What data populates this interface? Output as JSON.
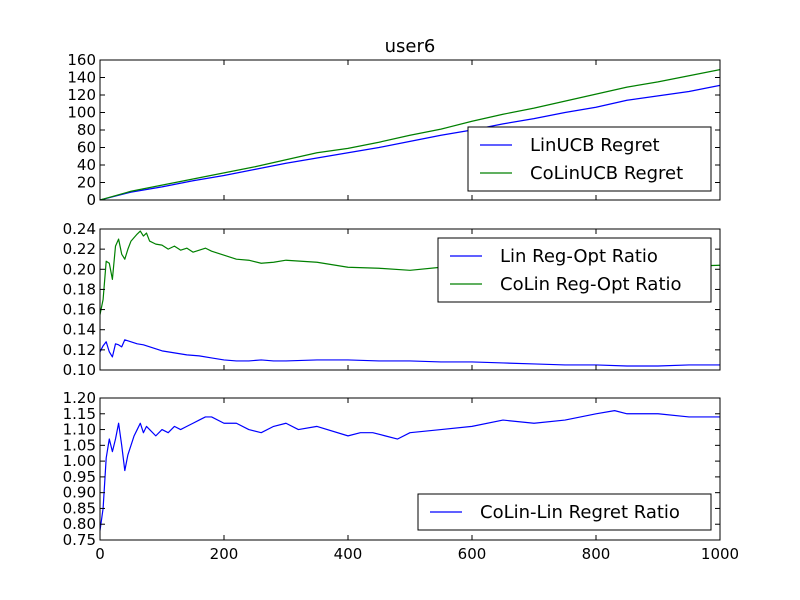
{
  "figure": {
    "title": "user6"
  },
  "colors": {
    "blue": "#0000ff",
    "green": "#008000"
  },
  "chart_data": [
    {
      "type": "line",
      "title": "user6",
      "xlim": [
        0,
        1000
      ],
      "ylim": [
        0,
        160
      ],
      "yticks": [
        "0",
        "20",
        "40",
        "60",
        "80",
        "100",
        "120",
        "140",
        "160"
      ],
      "yticks_values": [
        0,
        20,
        40,
        60,
        80,
        100,
        120,
        140,
        160
      ],
      "xticks_visible": false,
      "legend_placement": "lower-right",
      "series": [
        {
          "name": "LinUCB Regret",
          "color": "#0000ff",
          "x": [
            0,
            50,
            100,
            150,
            200,
            250,
            300,
            350,
            400,
            450,
            500,
            550,
            600,
            650,
            700,
            750,
            800,
            850,
            900,
            950,
            1000
          ],
          "y": [
            0,
            9,
            15,
            22,
            28,
            35,
            42,
            48,
            54,
            60,
            67,
            74,
            80,
            87,
            93,
            100,
            106,
            114,
            119,
            124,
            131
          ]
        },
        {
          "name": "CoLinUCB Regret",
          "color": "#008000",
          "x": [
            0,
            50,
            100,
            150,
            200,
            250,
            300,
            350,
            400,
            450,
            500,
            550,
            600,
            650,
            700,
            750,
            800,
            850,
            900,
            950,
            1000
          ],
          "y": [
            0,
            10,
            17,
            24,
            31,
            38,
            46,
            54,
            59,
            66,
            74,
            81,
            90,
            98,
            105,
            113,
            121,
            129,
            135,
            142,
            149
          ]
        }
      ]
    },
    {
      "type": "line",
      "xlim": [
        0,
        1000
      ],
      "ylim": [
        0.1,
        0.24
      ],
      "yticks": [
        "0.10",
        "0.12",
        "0.14",
        "0.16",
        "0.18",
        "0.20",
        "0.22",
        "0.24"
      ],
      "yticks_values": [
        0.1,
        0.12,
        0.14,
        0.16,
        0.18,
        0.2,
        0.22,
        0.24
      ],
      "xticks_visible": false,
      "legend_placement": "upper-right",
      "series": [
        {
          "name": "Lin Reg-Opt Ratio",
          "color": "#0000ff",
          "x": [
            0,
            5,
            10,
            15,
            20,
            25,
            30,
            35,
            40,
            45,
            50,
            60,
            70,
            80,
            90,
            100,
            120,
            140,
            160,
            180,
            200,
            220,
            240,
            260,
            280,
            300,
            350,
            400,
            450,
            500,
            550,
            600,
            650,
            700,
            750,
            800,
            850,
            900,
            950,
            1000
          ],
          "y": [
            0.118,
            0.124,
            0.128,
            0.118,
            0.113,
            0.126,
            0.125,
            0.123,
            0.13,
            0.129,
            0.128,
            0.126,
            0.125,
            0.123,
            0.121,
            0.119,
            0.117,
            0.115,
            0.114,
            0.112,
            0.11,
            0.109,
            0.109,
            0.11,
            0.109,
            0.109,
            0.11,
            0.11,
            0.109,
            0.109,
            0.108,
            0.108,
            0.107,
            0.106,
            0.105,
            0.105,
            0.104,
            0.104,
            0.105,
            0.105
          ]
        },
        {
          "name": "CoLin Reg-Opt Ratio",
          "color": "#008000",
          "x": [
            0,
            5,
            10,
            15,
            20,
            25,
            30,
            35,
            40,
            45,
            50,
            60,
            65,
            70,
            75,
            80,
            90,
            100,
            110,
            120,
            130,
            140,
            150,
            160,
            170,
            180,
            200,
            220,
            240,
            260,
            280,
            300,
            350,
            400,
            450,
            500,
            550,
            600,
            650,
            700,
            750,
            800,
            850,
            900,
            950,
            1000
          ],
          "y": [
            0.155,
            0.17,
            0.208,
            0.206,
            0.19,
            0.223,
            0.23,
            0.215,
            0.21,
            0.22,
            0.228,
            0.235,
            0.238,
            0.233,
            0.236,
            0.228,
            0.225,
            0.224,
            0.22,
            0.223,
            0.219,
            0.221,
            0.217,
            0.219,
            0.221,
            0.218,
            0.214,
            0.21,
            0.209,
            0.206,
            0.207,
            0.209,
            0.207,
            0.202,
            0.201,
            0.199,
            0.202,
            0.203,
            0.203,
            0.202,
            0.201,
            0.201,
            0.201,
            0.202,
            0.203,
            0.204
          ]
        }
      ]
    },
    {
      "type": "line",
      "xlim": [
        0,
        1000
      ],
      "ylim": [
        0.75,
        1.2
      ],
      "yticks": [
        "0.75",
        "0.80",
        "0.85",
        "0.90",
        "0.95",
        "1.00",
        "1.05",
        "1.10",
        "1.15",
        "1.20"
      ],
      "yticks_values": [
        0.75,
        0.8,
        0.85,
        0.9,
        0.95,
        1.0,
        1.05,
        1.1,
        1.15,
        1.2
      ],
      "xticks": [
        "0",
        "200",
        "400",
        "600",
        "800",
        "1000"
      ],
      "xticks_values": [
        0,
        200,
        400,
        600,
        800,
        1000
      ],
      "legend_placement": "lower-right",
      "series": [
        {
          "name": "CoLin-Lin Regret Ratio",
          "color": "#0000ff",
          "x": [
            0,
            5,
            10,
            15,
            20,
            25,
            30,
            35,
            40,
            45,
            50,
            55,
            60,
            65,
            70,
            75,
            80,
            90,
            100,
            110,
            120,
            130,
            140,
            150,
            160,
            170,
            180,
            200,
            220,
            240,
            260,
            280,
            300,
            320,
            350,
            400,
            420,
            440,
            460,
            480,
            500,
            550,
            600,
            650,
            700,
            750,
            800,
            830,
            850,
            900,
            950,
            1000
          ],
          "y": [
            0.78,
            0.85,
            1.01,
            1.07,
            1.03,
            1.07,
            1.12,
            1.05,
            0.97,
            1.02,
            1.05,
            1.08,
            1.1,
            1.12,
            1.09,
            1.11,
            1.1,
            1.08,
            1.1,
            1.09,
            1.11,
            1.1,
            1.11,
            1.12,
            1.13,
            1.14,
            1.14,
            1.12,
            1.12,
            1.1,
            1.09,
            1.11,
            1.12,
            1.1,
            1.11,
            1.08,
            1.09,
            1.09,
            1.08,
            1.07,
            1.09,
            1.1,
            1.11,
            1.13,
            1.12,
            1.13,
            1.15,
            1.16,
            1.15,
            1.15,
            1.14,
            1.14
          ]
        }
      ]
    }
  ]
}
